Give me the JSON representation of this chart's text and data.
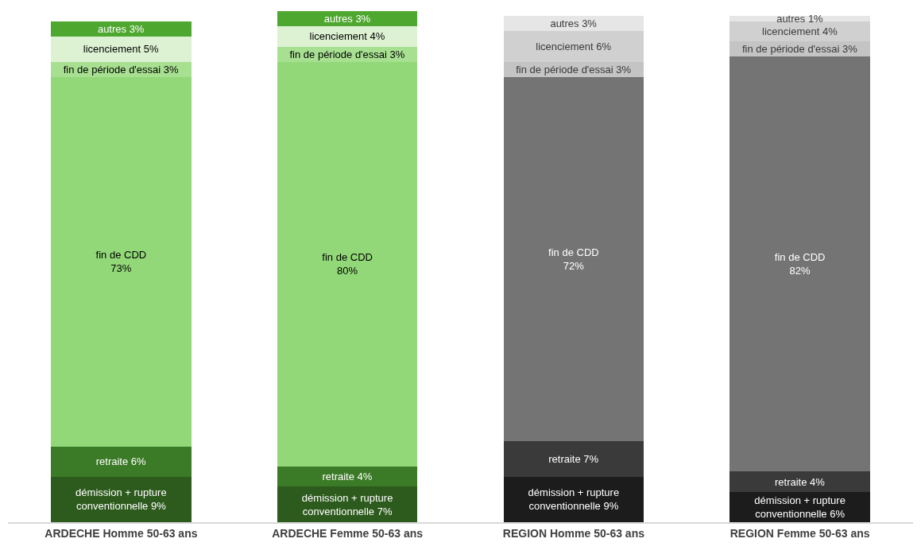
{
  "chart_data": {
    "type": "bar",
    "stacked": true,
    "categories": [
      "ARDECHE Homme 50-63 ans",
      "ARDECHE Femme 50-63 ans",
      "REGION Homme 50-63 ans",
      "REGION Femme 50-63 ans"
    ],
    "series": [
      {
        "name": "démission + rupture conventionnelle",
        "colors": [
          "#2d5a1d",
          "#2d5a1d",
          "#1c1c1c",
          "#1c1c1c"
        ],
        "values": [
          9,
          7,
          9,
          6
        ],
        "value_labels": [
          "9%",
          "7%",
          "9%",
          "6%"
        ]
      },
      {
        "name": "retraite",
        "colors": [
          "#3b7a26",
          "#3b7a26",
          "#3a3a3a",
          "#3a3a3a"
        ],
        "values": [
          6,
          4,
          7,
          4
        ],
        "value_labels": [
          "6%",
          "4%",
          "7%",
          "4%"
        ]
      },
      {
        "name": "fin de CDD",
        "colors": [
          "#92d878",
          "#92d878",
          "#747474",
          "#747474"
        ],
        "values": [
          73,
          80,
          72,
          82
        ],
        "value_labels": [
          "73%",
          "80%",
          "72%",
          "82%"
        ]
      },
      {
        "name": "fin de période d'essai",
        "colors": [
          "#a8e092",
          "#a8e092",
          "#c4c4c4",
          "#c4c4c4"
        ],
        "values": [
          3,
          3,
          3,
          3
        ],
        "value_labels": [
          "3%",
          "3%",
          "3%",
          "3%"
        ]
      },
      {
        "name": "licenciement",
        "colors": [
          "#dcf2d2",
          "#dcf2d2",
          "#d0d0d0",
          "#d0d0d0"
        ],
        "values": [
          5,
          4,
          6,
          4
        ],
        "value_labels": [
          "5%",
          "4%",
          "6%",
          "4%"
        ]
      },
      {
        "name": "autres",
        "colors": [
          "#4ea72e",
          "#4ea72e",
          "#e6e6e6",
          "#e6e6e6"
        ],
        "values": [
          3,
          3,
          3,
          1
        ],
        "value_labels": [
          "3%",
          "3%",
          "3%",
          "1%"
        ]
      }
    ],
    "legend": false
  }
}
